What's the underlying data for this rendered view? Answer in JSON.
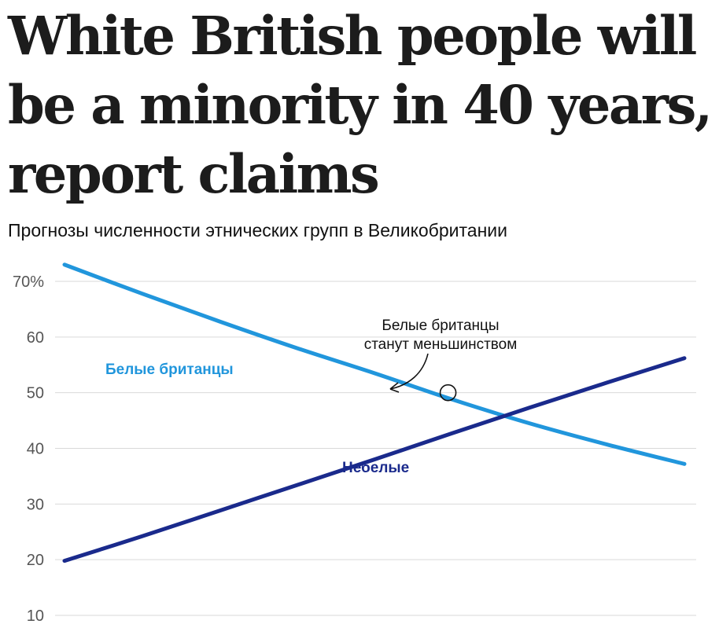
{
  "headline": "White British people will be a minority in 40 years, report claims",
  "chart_data": {
    "type": "line",
    "title": "Прогнозы численности этнических групп в Великобритании",
    "xlabel": "",
    "ylabel": "",
    "ylim": [
      10,
      73
    ],
    "y_ticks": [
      {
        "value": 70,
        "label": "70%"
      },
      {
        "value": 60,
        "label": "60"
      },
      {
        "value": 50,
        "label": "50"
      },
      {
        "value": 40,
        "label": "40"
      },
      {
        "value": 30,
        "label": "30"
      },
      {
        "value": 20,
        "label": "20"
      },
      {
        "value": 10,
        "label": "10"
      }
    ],
    "grid": true,
    "x": [
      0,
      10,
      20,
      30,
      40,
      50,
      60,
      70,
      80
    ],
    "series": [
      {
        "name": "Белые британцы",
        "color": "#2196dc",
        "values": [
          73.0,
          67.8,
          62.8,
          58.0,
          53.5,
          48.8,
          44.5,
          40.7,
          37.2
        ]
      },
      {
        "name": "Небелые",
        "color": "#1a2a8c",
        "values": [
          19.8,
          24.2,
          28.8,
          33.4,
          38.0,
          42.7,
          47.3,
          51.8,
          56.2
        ]
      }
    ],
    "annotation": {
      "lines": [
        "Белые британцы",
        "станут меньшинством"
      ],
      "x": 49.5,
      "y": 50.0
    }
  }
}
